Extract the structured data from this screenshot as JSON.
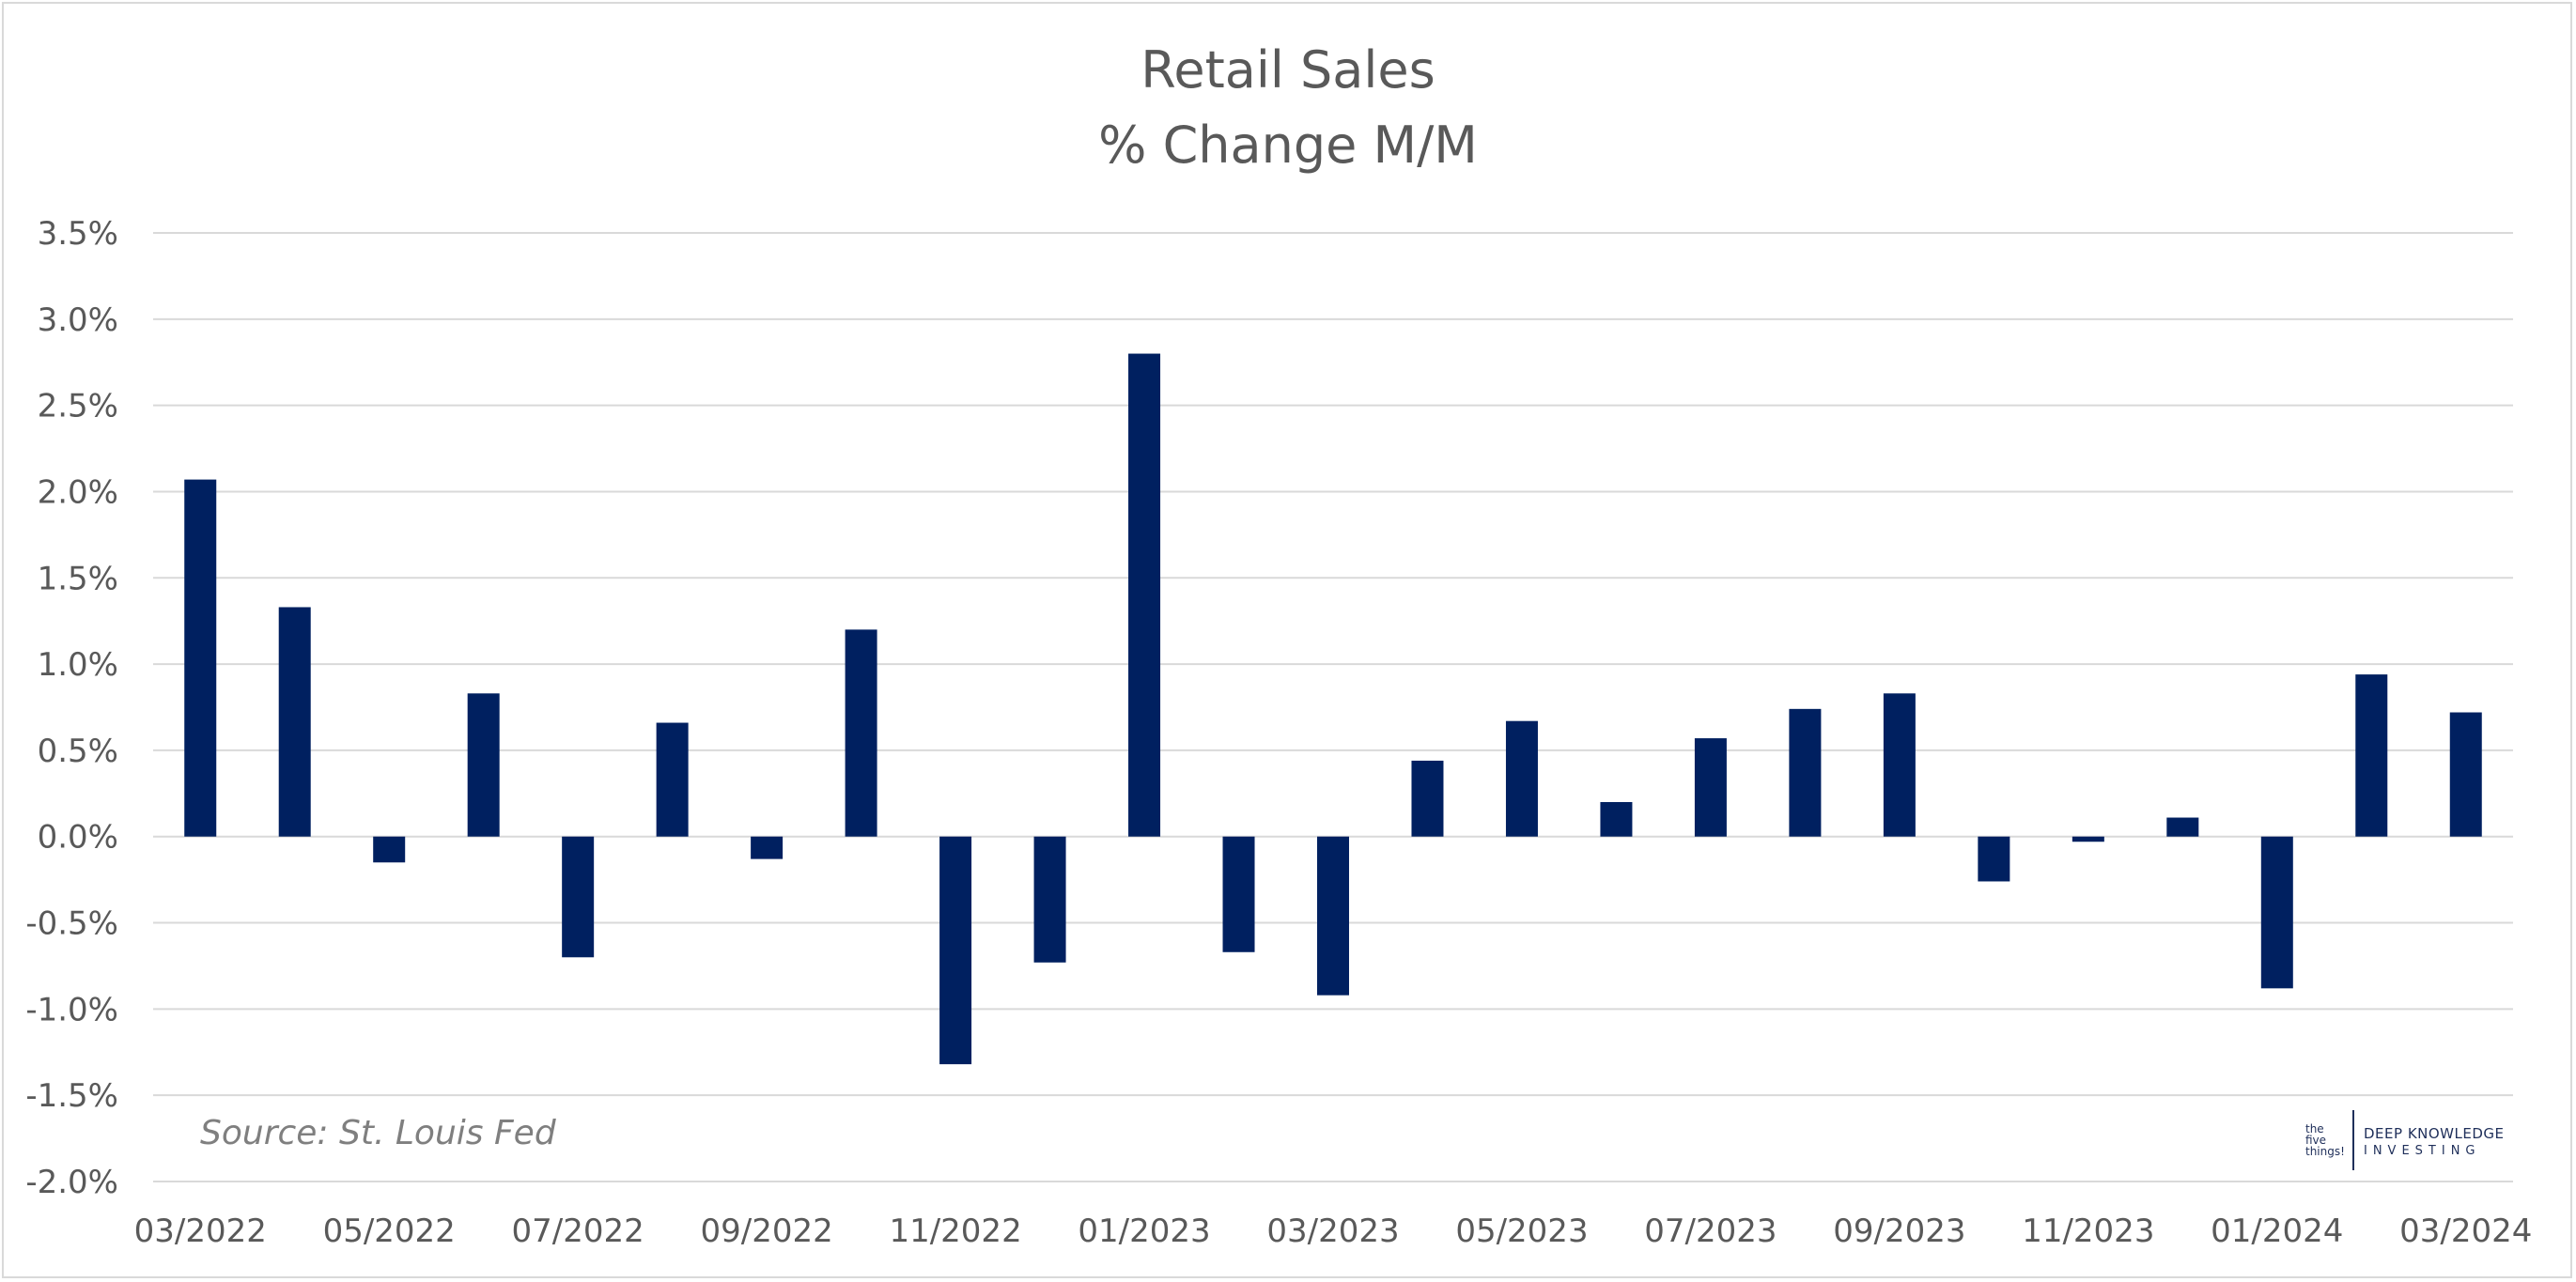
{
  "chart_data": {
    "type": "bar",
    "title": "Retail Sales",
    "subtitle": "% Change M/M",
    "xlabel": "",
    "ylabel": "",
    "ylim": [
      -2.0,
      3.5
    ],
    "grid": true,
    "legend": "none",
    "bar_color": "#002060",
    "y_ticks": [
      "-2.0%",
      "-1.5%",
      "-1.0%",
      "-0.5%",
      "0.0%",
      "0.5%",
      "1.0%",
      "1.5%",
      "2.0%",
      "2.5%",
      "3.0%",
      "3.5%"
    ],
    "y_tick_values": [
      -2.0,
      -1.5,
      -1.0,
      -0.5,
      0.0,
      0.5,
      1.0,
      1.5,
      2.0,
      2.5,
      3.0,
      3.5
    ],
    "x_tick_labels": [
      "03/2022",
      "05/2022",
      "07/2022",
      "09/2022",
      "11/2022",
      "01/2023",
      "03/2023",
      "05/2023",
      "07/2023",
      "09/2023",
      "11/2023",
      "01/2024",
      "03/2024"
    ],
    "categories": [
      "03/2022",
      "04/2022",
      "05/2022",
      "06/2022",
      "07/2022",
      "08/2022",
      "09/2022",
      "10/2022",
      "11/2022",
      "12/2022",
      "01/2023",
      "02/2023",
      "03/2023",
      "04/2023",
      "05/2023",
      "06/2023",
      "07/2023",
      "08/2023",
      "09/2023",
      "10/2023",
      "11/2023",
      "12/2023",
      "01/2024",
      "02/2024",
      "03/2024"
    ],
    "values": [
      2.07,
      1.33,
      -0.15,
      0.83,
      -0.7,
      0.66,
      -0.13,
      1.2,
      -1.32,
      -0.73,
      2.8,
      -0.67,
      -0.92,
      0.44,
      0.67,
      0.2,
      0.57,
      0.74,
      0.83,
      -0.26,
      -0.03,
      0.11,
      -0.88,
      0.94,
      0.72
    ]
  },
  "source": "Source: St. Louis Fed",
  "logo": {
    "left_text": "the five things!",
    "right_line1": "DEEP KNOWLEDGE",
    "right_line2": "INVESTING"
  }
}
